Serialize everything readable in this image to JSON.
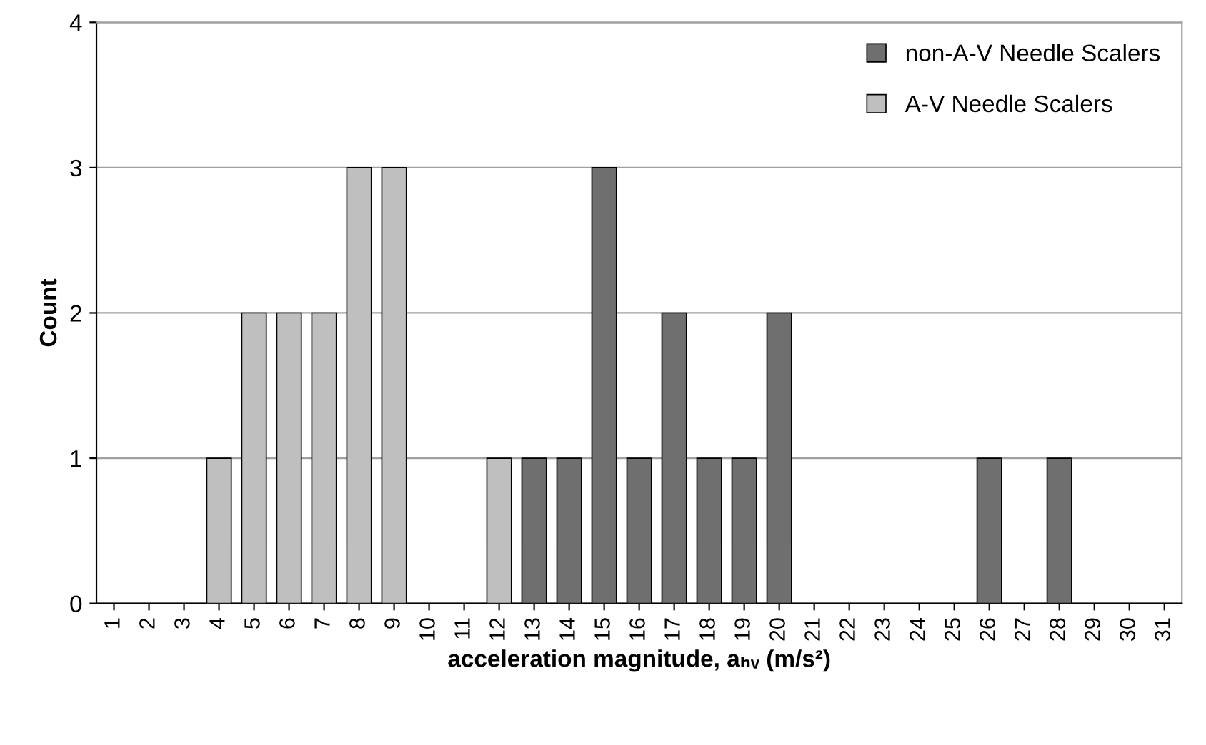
{
  "chart_data": {
    "type": "bar",
    "xlabel": "acceleration magnitude, aₕᵥ (m/s²)",
    "ylabel": "Count",
    "categories": [
      "1",
      "2",
      "3",
      "4",
      "5",
      "6",
      "7",
      "8",
      "9",
      "10",
      "11",
      "12",
      "13",
      "14",
      "15",
      "16",
      "17",
      "18",
      "19",
      "20",
      "21",
      "22",
      "23",
      "24",
      "25",
      "26",
      "27",
      "28",
      "29",
      "30",
      "31"
    ],
    "series": [
      {
        "name": "non-A-V Needle Scalers",
        "color": "#6f6f6f",
        "values": [
          null,
          null,
          null,
          null,
          null,
          null,
          null,
          null,
          null,
          null,
          null,
          null,
          1,
          1,
          3,
          1,
          2,
          1,
          1,
          2,
          null,
          null,
          null,
          null,
          null,
          1,
          null,
          1,
          null,
          null,
          null
        ]
      },
      {
        "name": "A-V Needle Scalers",
        "color": "#bfbfbf",
        "values": [
          null,
          null,
          null,
          1,
          2,
          2,
          2,
          3,
          3,
          null,
          null,
          1,
          null,
          null,
          null,
          null,
          null,
          null,
          null,
          null,
          null,
          null,
          null,
          null,
          null,
          null,
          null,
          null,
          null,
          null,
          null
        ]
      }
    ],
    "stacked": true,
    "ylim": [
      0,
      4
    ],
    "yticks": [
      0,
      1,
      2,
      3,
      4
    ],
    "grid": "y",
    "legend": "top right"
  }
}
